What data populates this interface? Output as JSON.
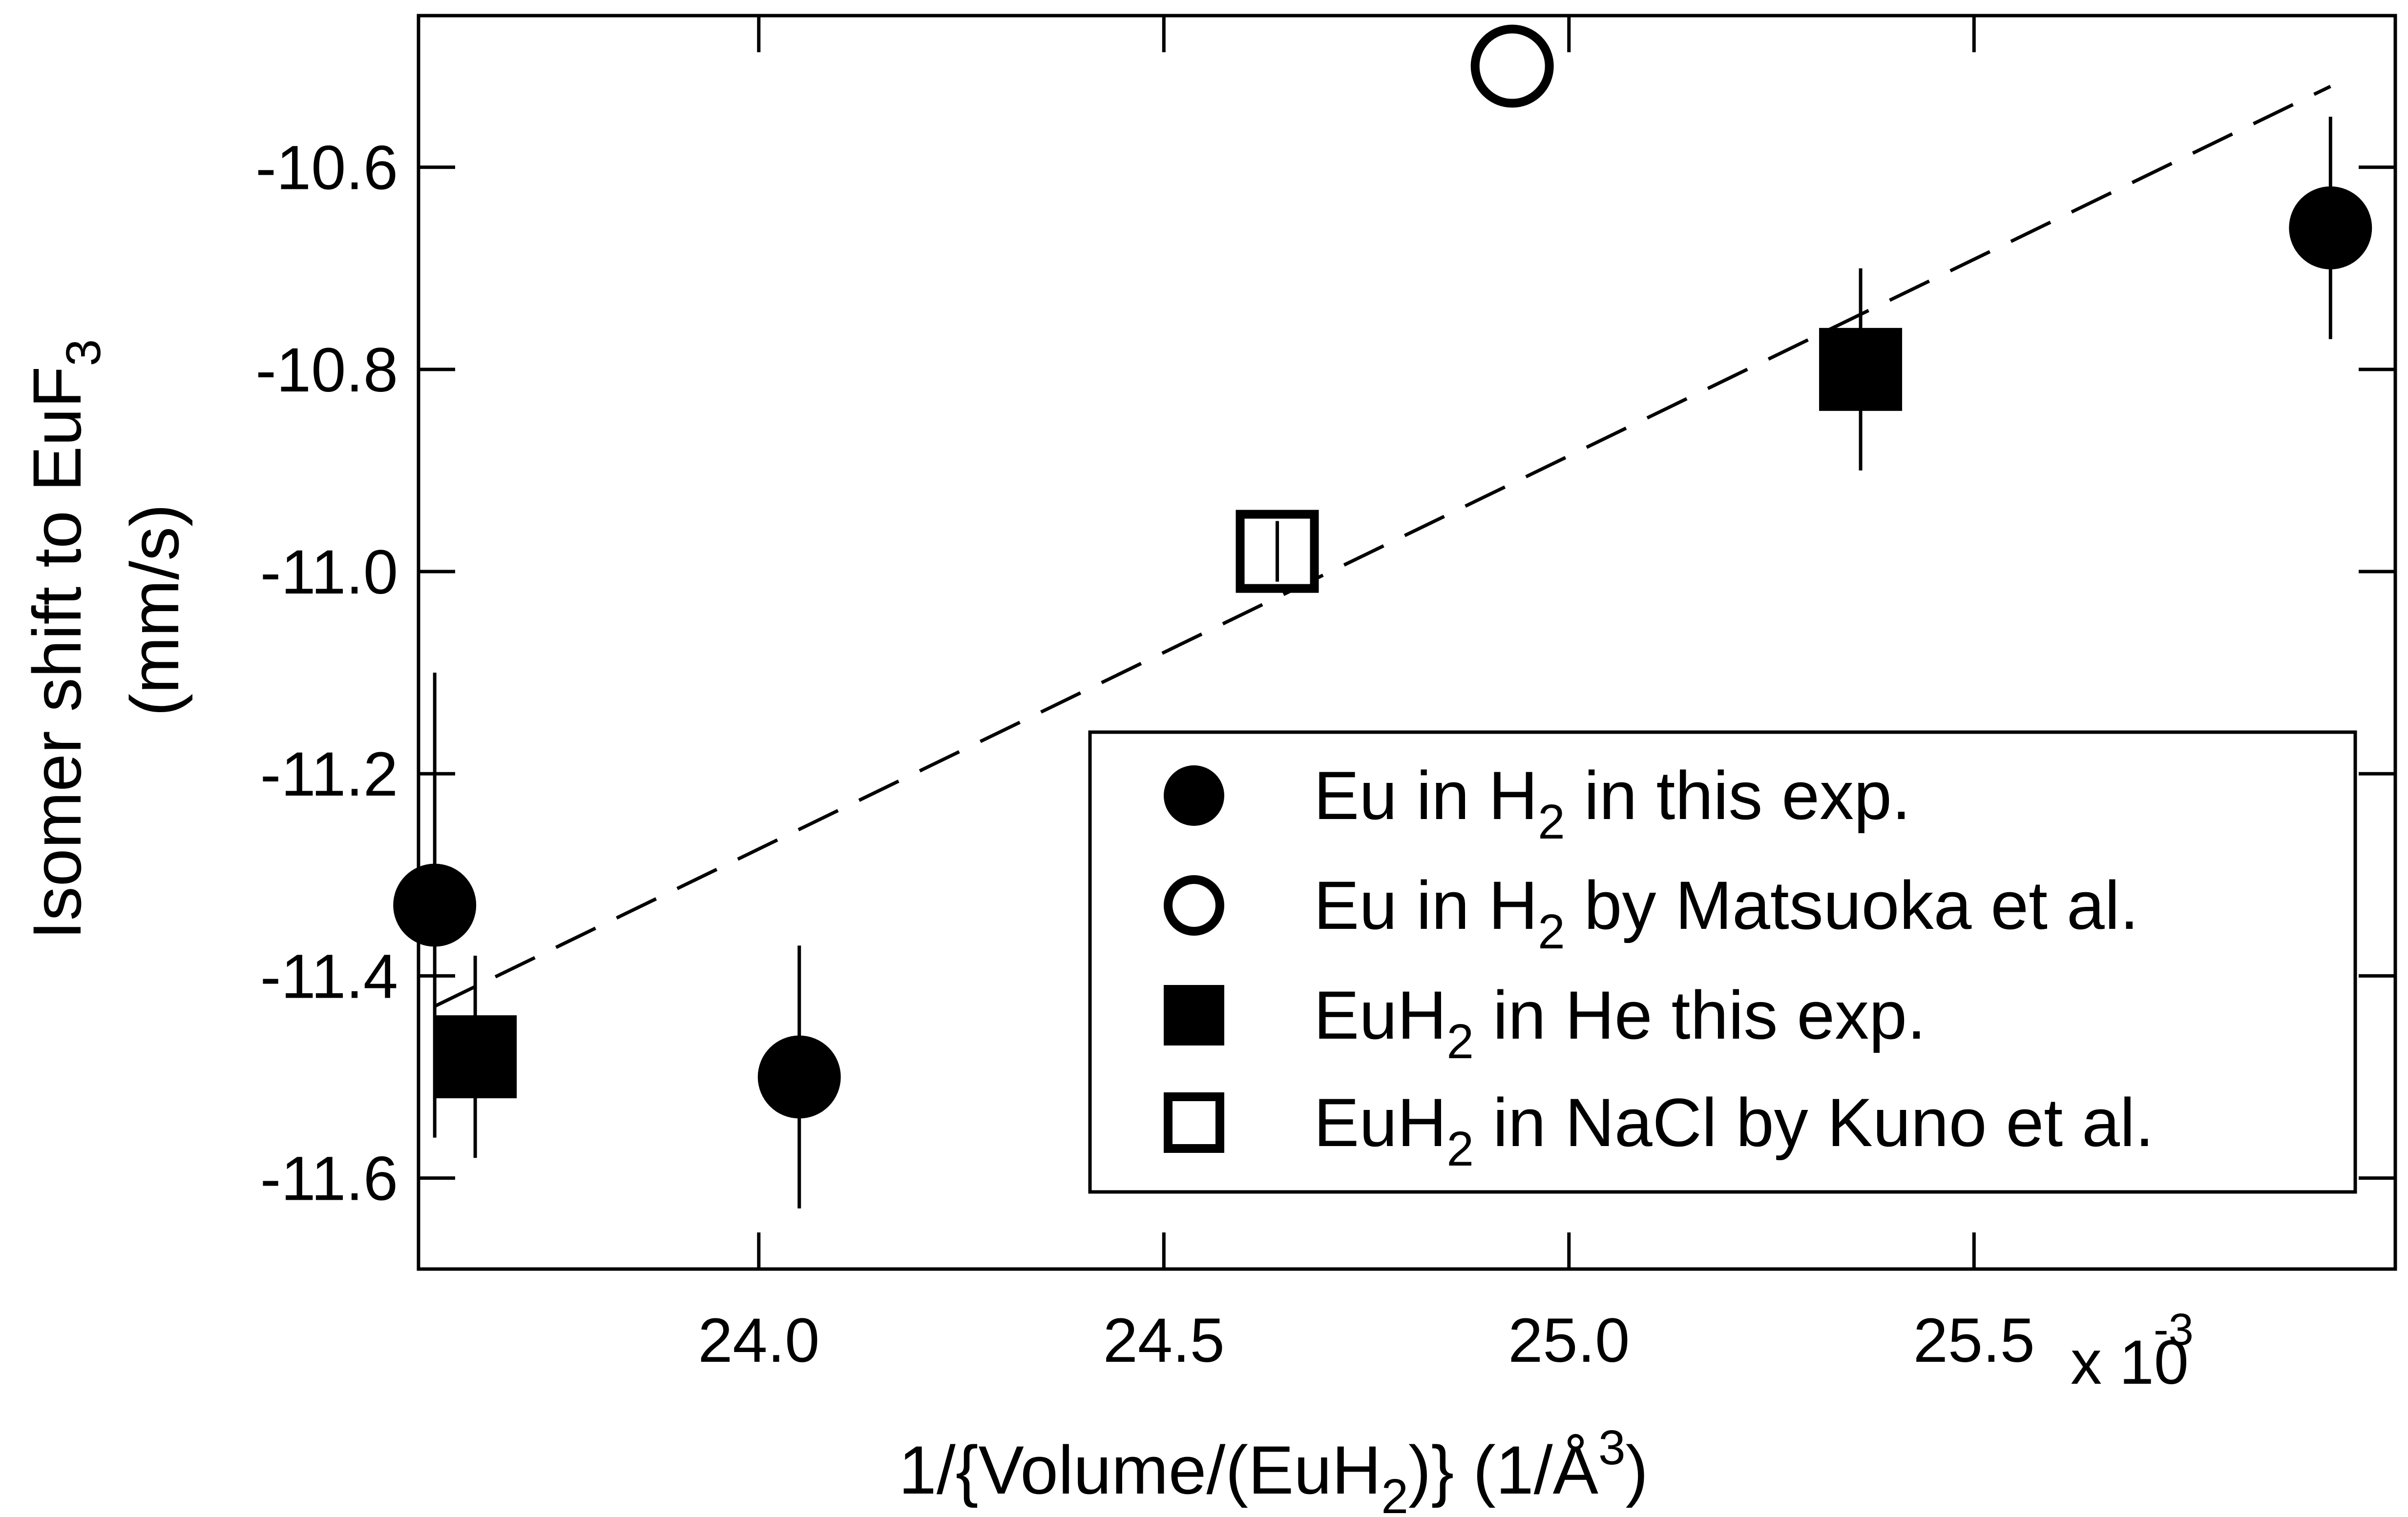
{
  "chart_data": {
    "type": "scatter",
    "xlabel_parts": [
      "1/{Volume/(EuH",
      "2",
      ")}  (1/Å",
      "3",
      ")"
    ],
    "ylabel_parts": [
      "Isomer shift to EuF",
      "3"
    ],
    "ylabel_line2": "(mm/s)",
    "x_multiplier": "x 10",
    "x_multiplier_exp": "-3",
    "xlim": [
      23.58,
      26.02
    ],
    "ylim": [
      -11.69,
      -10.45
    ],
    "x_ticks": [
      "24.0",
      "24.5",
      "25.0",
      "25.5"
    ],
    "x_tick_values": [
      24.0,
      24.5,
      25.0,
      25.5
    ],
    "y_ticks": [
      "-10.6",
      "-10.8",
      "-11.0",
      "-11.2",
      "-11.4",
      "-11.6"
    ],
    "y_tick_values": [
      -10.6,
      -10.8,
      -11.0,
      -11.2,
      -11.4,
      -11.6
    ],
    "grid": false,
    "legend_position": "bottom-right",
    "series": [
      {
        "name_parts": [
          "Eu in H",
          "2",
          " in this exp."
        ],
        "marker": "filled-circle",
        "points": [
          {
            "x": 23.6,
            "y": -11.33,
            "err": 0.23
          },
          {
            "x": 24.05,
            "y": -11.5,
            "err": 0.13
          },
          {
            "x": 25.94,
            "y": -10.66,
            "err": 0.11
          }
        ]
      },
      {
        "name_parts": [
          "Eu in H",
          "2",
          " by Matsuoka et al."
        ],
        "marker": "open-circle",
        "points": [
          {
            "x": 24.93,
            "y": -10.5,
            "err": 0
          }
        ]
      },
      {
        "name_parts": [
          "EuH",
          "2",
          " in He this exp."
        ],
        "marker": "filled-square",
        "points": [
          {
            "x": 23.65,
            "y": -11.48,
            "err": 0.1
          },
          {
            "x": 25.36,
            "y": -10.8,
            "err": 0.1
          }
        ]
      },
      {
        "name_parts": [
          "EuH",
          "2",
          " in NaCl by Kuno et al."
        ],
        "marker": "open-square",
        "points": [
          {
            "x": 24.64,
            "y": -10.98,
            "err": 0.03
          }
        ]
      }
    ],
    "fit_line": {
      "style": "dashed",
      "x": [
        23.6,
        25.94
      ],
      "y": [
        -11.43,
        -10.52
      ]
    }
  }
}
